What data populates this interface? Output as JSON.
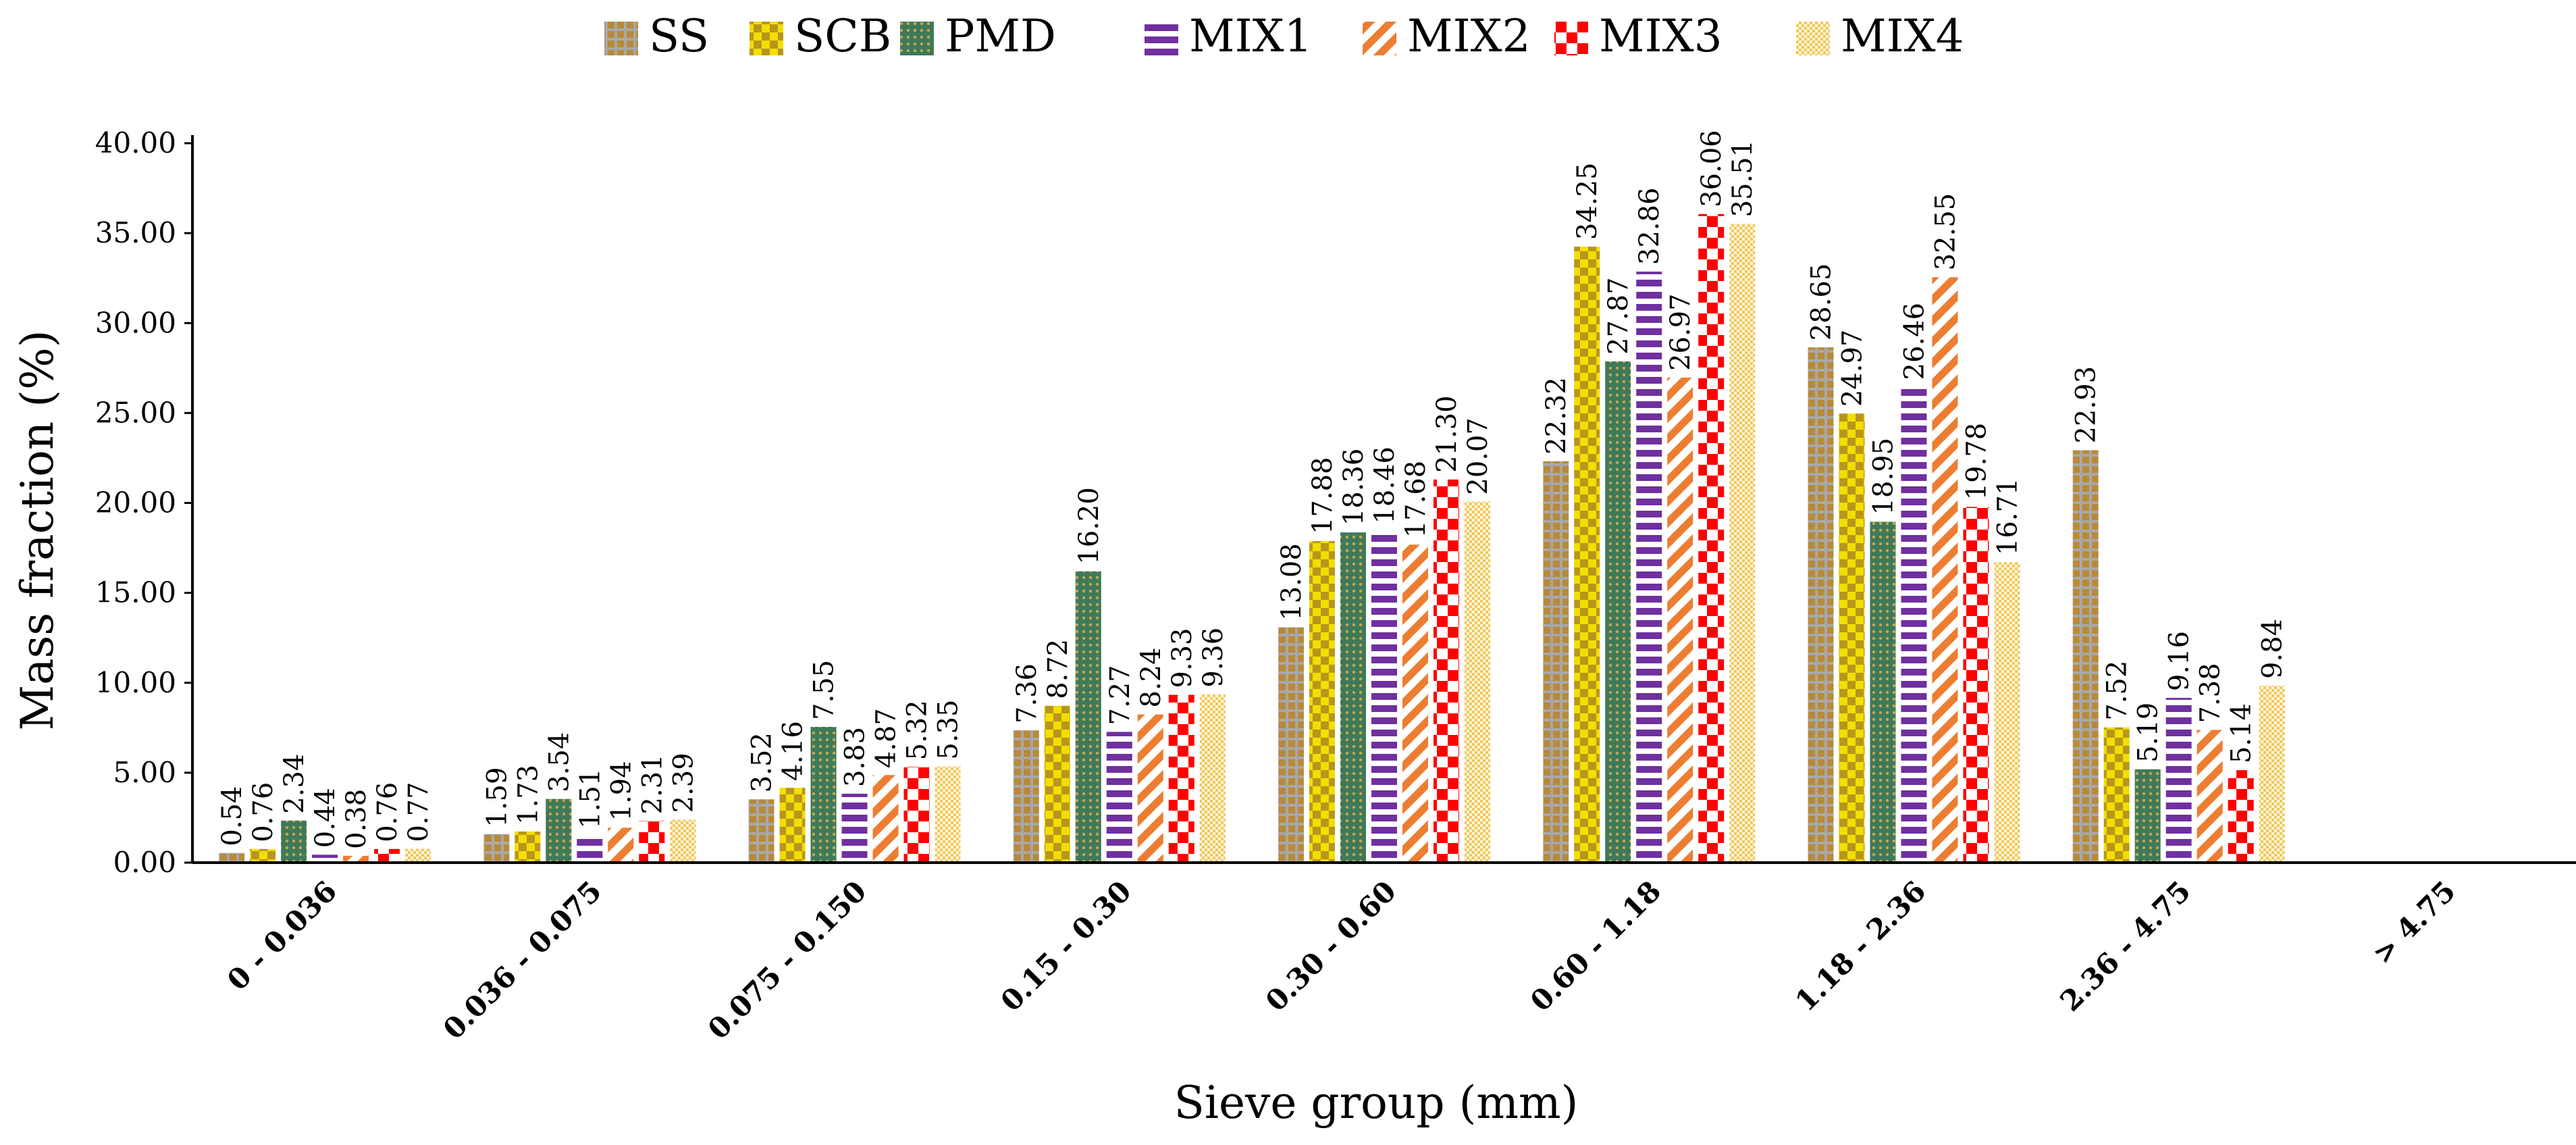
{
  "chart_data": {
    "type": "bar",
    "title": "",
    "xlabel": "Sieve group (mm)",
    "ylabel": "Mass fraction (%)",
    "ylim": [
      0,
      40
    ],
    "ytick_step": 5,
    "grid": false,
    "legend_position": "top",
    "categories": [
      "0 - 0.036",
      "0.036 - 0.075",
      "0.075 - 0.150",
      "0.15 - 0.30",
      "0.30 - 0.60",
      "0.60 - 1.18",
      "1.18 - 2.36",
      "2.36 - 4.75",
      "> 4.75"
    ],
    "series": [
      {
        "name": "SS",
        "pattern": "grid",
        "color": "#b88a38",
        "color2": "#a8a8a8",
        "values": [
          0.54,
          1.59,
          3.52,
          7.36,
          13.08,
          22.32,
          28.65,
          22.93,
          null
        ],
        "labels": [
          "0.54",
          "1.59",
          "3.52",
          "7.36",
          "13.08",
          "22.32",
          "28.65",
          "22.93",
          ""
        ]
      },
      {
        "name": "SCB",
        "pattern": "check",
        "color": "#f2de00",
        "color2": "#b8961c",
        "values": [
          0.76,
          1.73,
          4.16,
          8.72,
          17.88,
          34.25,
          24.97,
          7.52,
          null
        ],
        "labels": [
          "0.76",
          "1.73",
          "4.16",
          "8.72",
          "17.88",
          "34.25",
          "24.97",
          "7.52",
          ""
        ]
      },
      {
        "name": "PMD",
        "pattern": "dots",
        "color": "#3e7a5a",
        "color2": "#c9a64e",
        "values": [
          2.34,
          3.54,
          7.55,
          16.2,
          18.36,
          27.87,
          18.95,
          5.19,
          null
        ],
        "labels": [
          "2.34",
          "3.54",
          "7.55",
          "16.20",
          "18.36",
          "27.87",
          "18.95",
          "5.19",
          ""
        ]
      },
      {
        "name": "MIX1",
        "pattern": "hstripes",
        "color": "#7030a0",
        "color2": "#ffffff",
        "values": [
          0.44,
          1.51,
          3.83,
          7.27,
          18.46,
          32.86,
          26.46,
          9.16,
          null
        ],
        "labels": [
          "0.44",
          "1.51",
          "3.83",
          "7.27",
          "18.46",
          "32.86",
          "26.46",
          "9.16",
          ""
        ]
      },
      {
        "name": "MIX2",
        "pattern": "diag",
        "color": "#ed7d31",
        "color2": "#ffffff",
        "values": [
          0.38,
          1.94,
          4.87,
          8.24,
          17.68,
          26.97,
          32.55,
          7.38,
          null
        ],
        "labels": [
          "0.38",
          "1.94",
          "4.87",
          "8.24",
          "17.68",
          "26.97",
          "32.55",
          "7.38",
          ""
        ]
      },
      {
        "name": "MIX3",
        "pattern": "bigcheck",
        "color": "#ff0000",
        "color2": "#ffffff",
        "values": [
          0.76,
          2.31,
          5.32,
          9.33,
          21.3,
          36.06,
          19.78,
          5.14,
          null
        ],
        "labels": [
          "0.76",
          "2.31",
          "5.32",
          "9.33",
          "21.30",
          "36.06",
          "19.78",
          "5.14",
          ""
        ]
      },
      {
        "name": "MIX4",
        "pattern": "smallcheck",
        "color": "#f3c65a",
        "color2": "#fff8de",
        "values": [
          0.77,
          2.39,
          5.35,
          9.36,
          20.07,
          35.51,
          16.71,
          9.84,
          null
        ],
        "labels": [
          "0.77",
          "2.39",
          "5.35",
          "9.36",
          "20.07",
          "35.51",
          "16.71",
          "9.84",
          ""
        ]
      }
    ]
  }
}
